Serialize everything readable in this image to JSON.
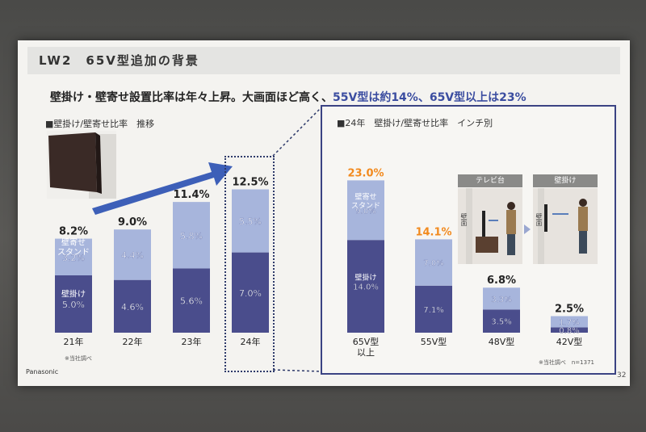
{
  "slide": {
    "title": "LW2　65V型追加の背景",
    "headline_main": "壁掛け・壁寄せ設置比率は年々上昇。大画面ほど高く、",
    "headline_highlight": "55V型は約14%、65V型以上は23%",
    "brand": "Panasonic",
    "page_number": "32",
    "survey_note_left": "※当社調べ",
    "survey_note_right": "※当社調べ　n=1371"
  },
  "illustration": {
    "tv_stand_caption": "テレビ台",
    "wall_mount_caption": "壁掛け",
    "wall_label": "壁面"
  },
  "chart_data": [
    {
      "type": "bar",
      "subtitle": "■壁掛け/壁寄せ比率　推移",
      "categories": [
        "21年",
        "22年",
        "23年",
        "24年"
      ],
      "totals": [
        8.2,
        9.0,
        11.4,
        12.5
      ],
      "total_labels": [
        "8.2%",
        "9.0%",
        "11.4%",
        "12.5%"
      ],
      "series": [
        {
          "name": "壁掛け",
          "values": [
            5.0,
            4.6,
            5.6,
            7.0
          ],
          "labels": [
            "5.0%",
            "4.6%",
            "5.6%",
            "7.0%"
          ],
          "color": "#4a4d8c"
        },
        {
          "name": "壁寄せスタンド",
          "values": [
            3.2,
            4.4,
            5.8,
            5.5
          ],
          "labels": [
            "3.2%",
            "4.4%",
            "5.8%",
            "5.5%"
          ],
          "color": "#a7b5dc"
        }
      ],
      "inline_labels": {
        "wall_mount": "壁掛け",
        "wall_stand_line1": "壁寄せ",
        "wall_stand_line2": "スタンド"
      },
      "ylim": [
        0,
        14
      ]
    },
    {
      "type": "bar",
      "subtitle": "■24年　壁掛け/壁寄せ比率　インチ別",
      "categories": [
        "65V型以上",
        "55V型",
        "48V型",
        "42V型"
      ],
      "category_lines": [
        [
          "65V型",
          "以上"
        ],
        [
          "55V型"
        ],
        [
          "48V型"
        ],
        [
          "42V型"
        ]
      ],
      "totals": [
        23.0,
        14.1,
        6.8,
        2.5
      ],
      "total_labels": [
        "23.0%",
        "14.1%",
        "6.8%",
        "2.5%"
      ],
      "total_colors": [
        "#f28a1e",
        "#f28a1e",
        "#222222",
        "#222222"
      ],
      "series": [
        {
          "name": "壁掛け",
          "values": [
            14.0,
            7.1,
            3.5,
            0.8
          ],
          "labels": [
            "14.0%",
            "7.1%",
            "3.5%",
            "0.8%"
          ],
          "color": "#4a4d8c"
        },
        {
          "name": "壁寄せスタンド",
          "values": [
            9.0,
            7.0,
            3.3,
            1.7
          ],
          "labels": [
            "9.0%",
            "7.0%",
            "3.3%",
            "1.7%"
          ],
          "color": "#a7b5dc"
        }
      ],
      "inline_labels": {
        "wall_mount": "壁掛け",
        "wall_stand_line1": "壁寄せ",
        "wall_stand_line2": "スタンド"
      },
      "ylim": [
        0,
        25
      ]
    }
  ]
}
